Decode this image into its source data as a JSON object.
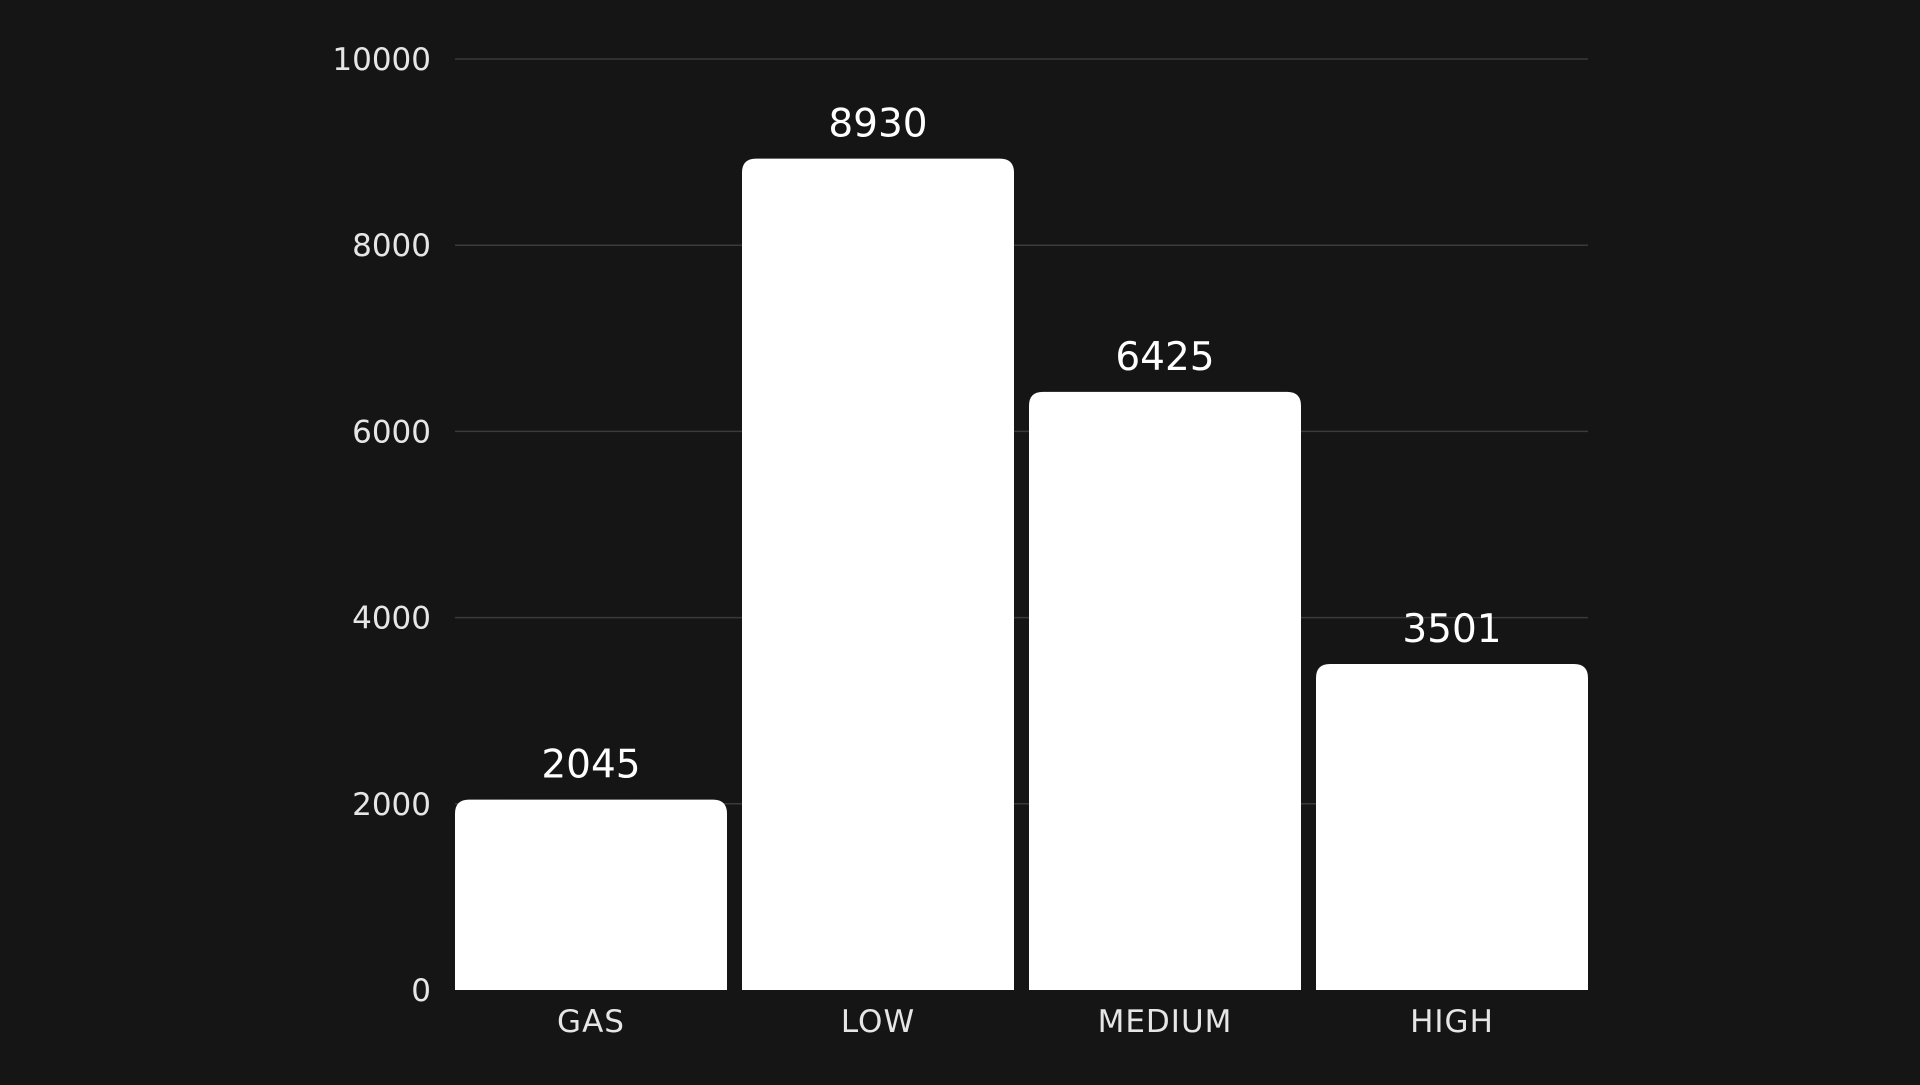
{
  "chart_data": {
    "type": "bar",
    "categories": [
      "GAS",
      "LOW",
      "MEDIUM",
      "HIGH"
    ],
    "values": [
      2045,
      8930,
      6425,
      3501
    ],
    "data_labels": [
      "2045",
      "8930",
      "6425",
      "3501"
    ],
    "title": "",
    "xlabel": "",
    "ylabel": "",
    "ylim": [
      0,
      10000
    ],
    "yticks": [
      0,
      2000,
      4000,
      6000,
      8000,
      10000
    ],
    "ytick_labels": [
      "0",
      "2000",
      "4000",
      "6000",
      "8000",
      "10000"
    ],
    "grid": true,
    "legend": "none",
    "colors": {
      "background": "#151515",
      "bar": "#ffffff",
      "grid": "#3a3a3a",
      "text": "#e6e6e6"
    }
  }
}
